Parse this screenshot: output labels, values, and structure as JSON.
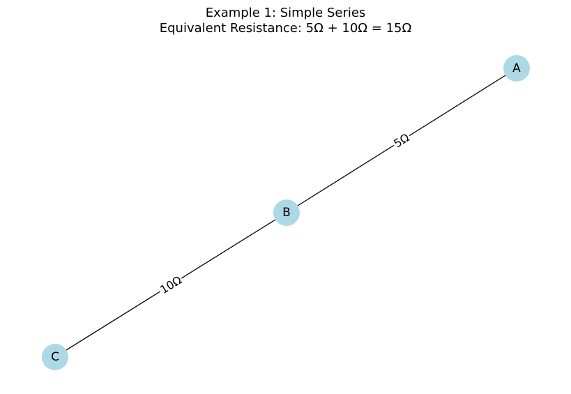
{
  "title": {
    "line1": "Example 1: Simple Series",
    "line2": "Equivalent Resistance: 5Ω + 10Ω = 15Ω"
  },
  "nodes": [
    {
      "id": "A",
      "label": "A"
    },
    {
      "id": "B",
      "label": "B"
    },
    {
      "id": "C",
      "label": "C"
    }
  ],
  "edges": [
    {
      "from": "A",
      "to": "B",
      "label": "5Ω"
    },
    {
      "from": "B",
      "to": "C",
      "label": "10Ω"
    }
  ],
  "colors": {
    "node_fill": "#add8e6",
    "edge": "#000000"
  }
}
